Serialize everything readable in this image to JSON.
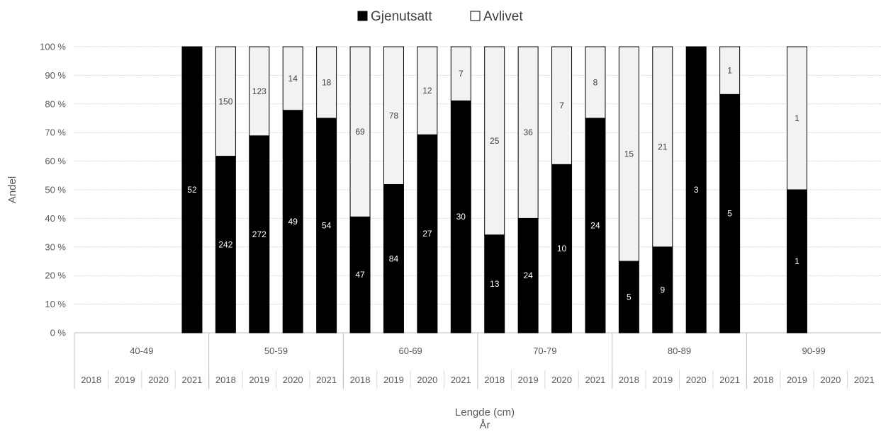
{
  "chart_data": {
    "type": "bar",
    "stacked": "percent",
    "legend": {
      "position": "top",
      "items": [
        "Gjenutsatt",
        "Avlivet"
      ]
    },
    "ylabel": "Andel",
    "xlabel": "Lengde (cm)",
    "xlabel2": "År",
    "yticks": [
      "0 %",
      "10 %",
      "20 %",
      "30 %",
      "40 %",
      "50 %",
      "60 %",
      "70 %",
      "80 %",
      "90 %",
      "100 %"
    ],
    "ylim": [
      0,
      100
    ],
    "grid": true,
    "groups": [
      "40-49",
      "50-59",
      "60-69",
      "70-79",
      "80-89",
      "90-99"
    ],
    "years": [
      "2018",
      "2019",
      "2020",
      "2021"
    ],
    "categories": [
      "40-49 2018",
      "40-49 2019",
      "40-49 2020",
      "40-49 2021",
      "50-59 2018",
      "50-59 2019",
      "50-59 2020",
      "50-59 2021",
      "60-69 2018",
      "60-69 2019",
      "60-69 2020",
      "60-69 2021",
      "70-79 2018",
      "70-79 2019",
      "70-79 2020",
      "70-79 2021",
      "80-89 2018",
      "80-89 2019",
      "80-89 2020",
      "80-89 2021",
      "90-99 2018",
      "90-99 2019",
      "90-99 2020",
      "90-99 2021"
    ],
    "series": [
      {
        "name": "Gjenutsatt",
        "color": "#000000",
        "values": [
          null,
          null,
          null,
          52,
          242,
          272,
          49,
          54,
          47,
          84,
          27,
          30,
          13,
          24,
          10,
          24,
          5,
          9,
          3,
          5,
          null,
          1,
          null,
          null
        ]
      },
      {
        "name": "Avlivet",
        "color": "#f2f2f2",
        "values": [
          null,
          null,
          null,
          null,
          150,
          123,
          14,
          18,
          69,
          78,
          12,
          7,
          25,
          36,
          7,
          8,
          15,
          21,
          null,
          1,
          null,
          1,
          null,
          null
        ]
      }
    ]
  }
}
